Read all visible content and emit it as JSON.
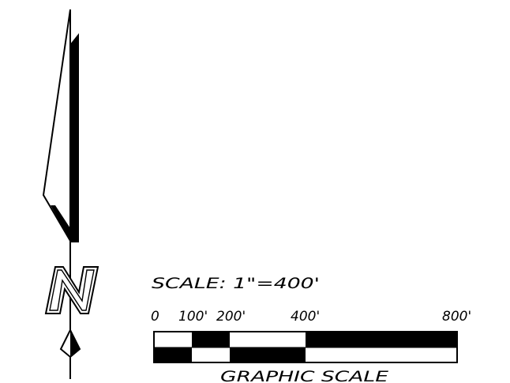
{
  "north_arrow": {
    "letter": "N"
  },
  "scale": {
    "label": "SCALE: 1\"=400'",
    "ticks": [
      "0",
      "100'",
      "200'",
      "400'",
      "800'"
    ],
    "caption": "GRAPHIC SCALE"
  },
  "colors": {
    "ink": "#000000",
    "paper": "#ffffff"
  }
}
